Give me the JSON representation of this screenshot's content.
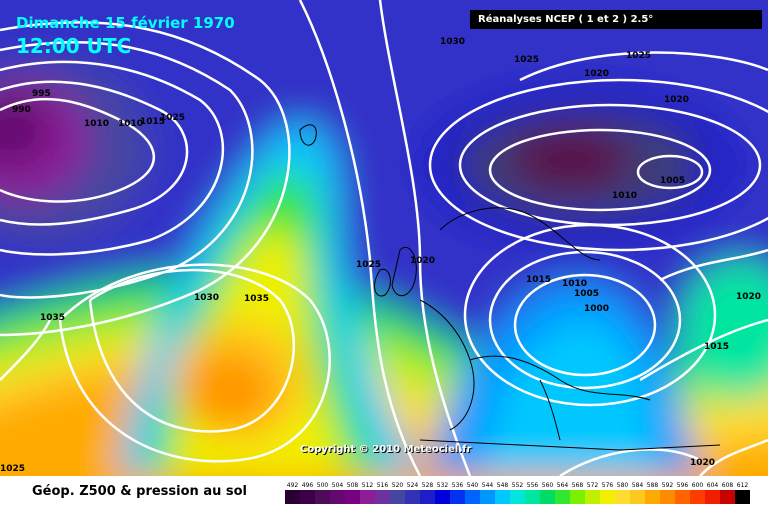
{
  "map": {
    "date_label": "Dimanche 15 février 1970",
    "time_label": "12:00 UTC",
    "source_label": "Réanalyses NCEP ( 1 et 2 ) 2.5°",
    "copyright": "Copyright © 2010 Meteociel.fr",
    "legend_title": "Géop. Z500 & pression au sol",
    "isobar_labels": [
      "995",
      "990",
      "1010",
      "1010",
      "1015",
      "1020",
      "1025",
      "1030",
      "1025",
      "1020",
      "1025",
      "1020",
      "1005",
      "1010",
      "1025",
      "1020",
      "1015",
      "1010",
      "1005",
      "1000",
      "1030",
      "1035",
      "1035",
      "1020",
      "1015",
      "1025",
      "1020"
    ],
    "scale_values": [
      "492",
      "496",
      "500",
      "504",
      "508",
      "512",
      "516",
      "520",
      "524",
      "528",
      "532",
      "536",
      "540",
      "544",
      "548",
      "552",
      "556",
      "560",
      "564",
      "568",
      "572",
      "576",
      "580",
      "584",
      "588",
      "592",
      "596",
      "600",
      "604",
      "608",
      "612"
    ],
    "scale_colors": [
      "#2a0032",
      "#3c0046",
      "#500a5a",
      "#640a6e",
      "#780082",
      "#8c1e96",
      "#6e32a0",
      "#4646a0",
      "#3232b4",
      "#1e1ec8",
      "#0000dc",
      "#0032f0",
      "#0064ff",
      "#0096ff",
      "#00c8ff",
      "#00e6dc",
      "#00e6a0",
      "#00dc64",
      "#32e632",
      "#78f000",
      "#bef000",
      "#f0f000",
      "#ffdc32",
      "#ffc81e",
      "#ffaa00",
      "#ff8c00",
      "#ff6400",
      "#ff3c00",
      "#f01e00",
      "#c80000",
      "#000000"
    ]
  }
}
